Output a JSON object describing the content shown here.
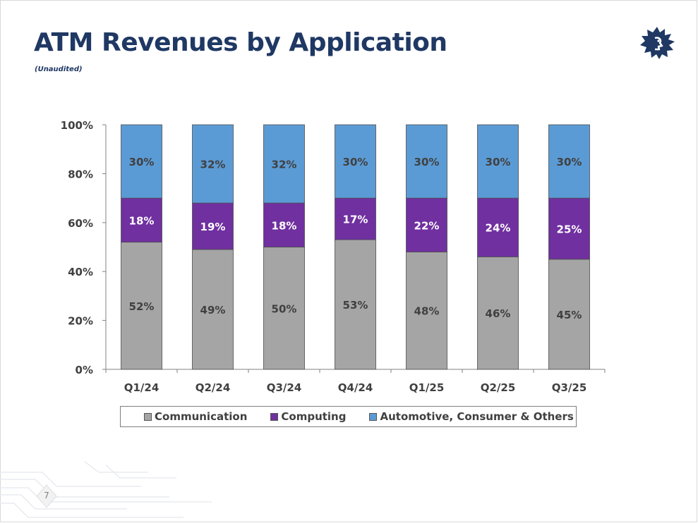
{
  "slide": {
    "title": "ATM Revenues by Application",
    "subtitle": "(Unaudited)",
    "page_number": "7",
    "logo_icon": "microchip-sun-logo-icon"
  },
  "colors": {
    "title": "#1f3864",
    "communication": "#a5a5a5",
    "computing": "#7030a0",
    "automotive": "#5b9bd5"
  },
  "chart_data": {
    "type": "bar",
    "stacked": true,
    "title": "",
    "xlabel": "",
    "ylabel": "",
    "ylim": [
      0,
      100
    ],
    "yticks": [
      "0%",
      "20%",
      "40%",
      "60%",
      "80%",
      "100%"
    ],
    "categories": [
      "Q1/24",
      "Q2/24",
      "Q3/24",
      "Q4/24",
      "Q1/25",
      "Q2/25",
      "Q3/25"
    ],
    "series": [
      {
        "name": "Communication",
        "color": "#a5a5a5",
        "values": [
          52,
          49,
          50,
          53,
          48,
          46,
          45
        ],
        "labels": [
          "52%",
          "49%",
          "50%",
          "53%",
          "48%",
          "46%",
          "45%"
        ]
      },
      {
        "name": "Computing",
        "color": "#7030a0",
        "values": [
          18,
          19,
          18,
          17,
          22,
          24,
          25
        ],
        "labels": [
          "18%",
          "19%",
          "18%",
          "17%",
          "22%",
          "24%",
          "25%"
        ]
      },
      {
        "name": "Automotive, Consumer & Others",
        "color": "#5b9bd5",
        "values": [
          30,
          32,
          32,
          30,
          30,
          30,
          30
        ],
        "labels": [
          "30%",
          "32%",
          "32%",
          "30%",
          "30%",
          "30%",
          "30%"
        ]
      }
    ],
    "legend_position": "bottom",
    "grid": false
  }
}
